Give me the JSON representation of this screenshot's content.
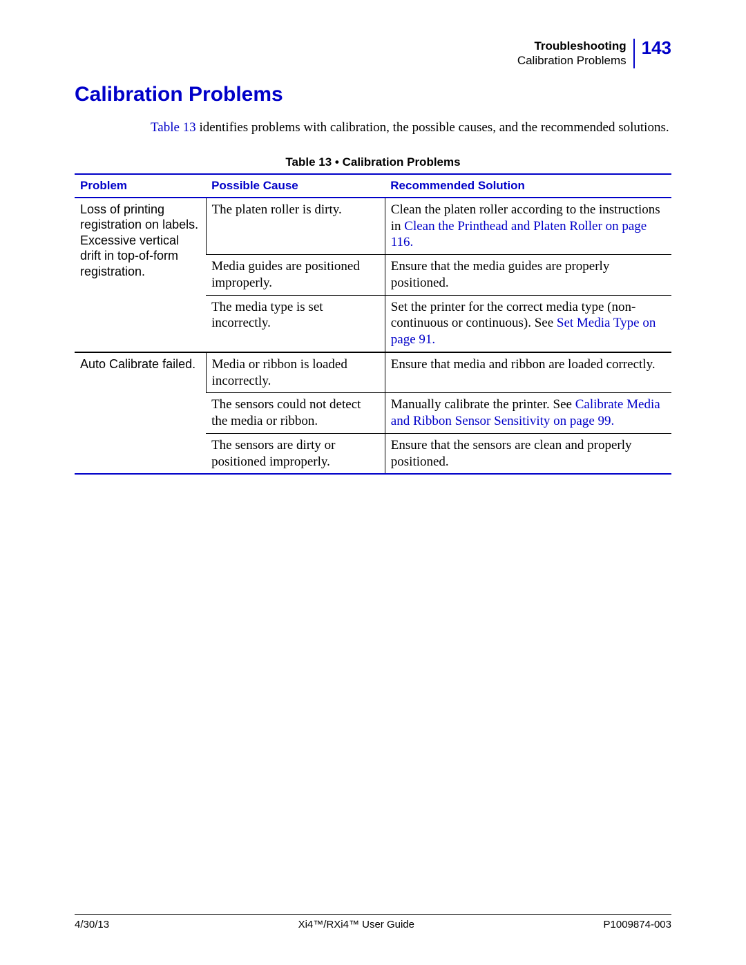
{
  "header": {
    "chapter": "Troubleshooting",
    "section": "Calibration Problems",
    "page_number": "143"
  },
  "title": "Calibration Problems",
  "intro": {
    "prefix": "",
    "table_ref": "Table 13",
    "suffix": " identifies problems with calibration, the possible causes, and the recommended solutions."
  },
  "table": {
    "caption": "Table 13 • Calibration Problems",
    "columns": {
      "problem": "Problem",
      "cause": "Possible Cause",
      "solution": "Recommended Solution"
    },
    "group1": {
      "problem": "Loss of printing registration on labels. Excessive vertical drift in top-of-form registration.",
      "r1": {
        "cause": "The platen roller is dirty.",
        "sol_pre": "Clean the platen roller according to the instructions in ",
        "sol_link": "Clean the Printhead and Platen Roller",
        "sol_post": " on page 116."
      },
      "r2": {
        "cause": "Media guides are positioned improperly.",
        "sol": "Ensure that the media guides are properly positioned."
      },
      "r3": {
        "cause": "The media type is set incorrectly.",
        "sol_pre": "Set the printer for the correct media type (non-continuous or continuous). See ",
        "sol_link": "Set Media Type",
        "sol_post": " on page 91."
      }
    },
    "group2": {
      "problem": "Auto Calibrate failed.",
      "r1": {
        "cause": "Media or ribbon is loaded incorrectly.",
        "sol": "Ensure that media and ribbon are loaded correctly."
      },
      "r2": {
        "cause": "The sensors could not detect the media or ribbon.",
        "sol_pre": "Manually calibrate the printer. See ",
        "sol_link": "Calibrate Media and Ribbon Sensor Sensitivity",
        "sol_post": " on page 99."
      },
      "r3": {
        "cause": "The sensors are dirty or positioned improperly.",
        "sol": "Ensure that the sensors are clean and properly positioned."
      }
    }
  },
  "footer": {
    "date": "4/30/13",
    "guide": "Xi4™/RXi4™ User Guide",
    "docnum": "P1009874-003"
  },
  "colors": {
    "accent": "#0000c8",
    "text": "#000000",
    "background": "#ffffff"
  }
}
